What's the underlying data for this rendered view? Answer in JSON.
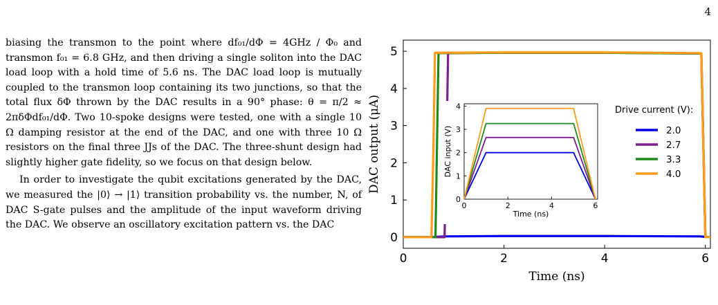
{
  "page": {
    "number": "4"
  },
  "paragraphs": [
    "biasing the transmon to the point where df₀₁/dΦ = 4GHz / Φ₀ and transmon f₀₁ = 6.8 GHz, and then driving a single soliton into the DAC load loop with a hold time of 5.6 ns. The DAC load loop is mutually coupled to the transmon loop containing its two junctions, so that the total flux δΦ thrown by the DAC results in a 90° phase: θ = π/2 ≈ 2πδΦdf₀₁/dΦ. Two 10-spoke designs were tested, one with a single 10 Ω damping resistor at the end of the DAC, and one with three 10 Ω resistors on the final three JJs of the DAC. The three-shunt design had slightly higher gate fidelity, so we focus on that design below.",
    "In order to investigate the qubit excitations generated by the DAC, we measured the |0⟩ → |1⟩ transition probability vs. the number, N, of DAC S-gate pulses and the amplitude of the input waveform driving the DAC. We observe an oscillatory excitation pattern vs. the DAC"
  ],
  "chart_data": [
    {
      "type": "line",
      "xlabel": "Time (ns)",
      "ylabel": "DAC output (μA)",
      "xlim": [
        0,
        6.1
      ],
      "ylim": [
        -0.3,
        5.3
      ],
      "xticks": [
        "0",
        "2",
        "4",
        "6"
      ],
      "yticks": [
        "0",
        "1",
        "2",
        "3",
        "4",
        "5"
      ],
      "grid": false,
      "legend": {
        "title": "Drive current (V):",
        "placement": "right"
      },
      "series": [
        {
          "name": "2.0",
          "color": "#0000ee",
          "points": [
            [
              0,
              0.0
            ],
            [
              0.58,
              0.0
            ],
            [
              0.8,
              0.02
            ],
            [
              2.0,
              0.03
            ],
            [
              4.0,
              0.03
            ],
            [
              5.9,
              0.02
            ],
            [
              6.05,
              0.0
            ],
            [
              6.1,
              0.0
            ]
          ]
        },
        {
          "name": "2.7",
          "color": "#7a1f8f",
          "points": [
            [
              0,
              0.0
            ],
            [
              0.82,
              0.0
            ],
            [
              0.86,
              2.5
            ],
            [
              0.89,
              4.95
            ],
            [
              2.0,
              4.96
            ],
            [
              4.0,
              4.96
            ],
            [
              5.92,
              4.94
            ],
            [
              5.96,
              2.5
            ],
            [
              6.0,
              0.0
            ],
            [
              6.1,
              0.0
            ]
          ]
        },
        {
          "name": "3.3",
          "color": "#1e8a1e",
          "points": [
            [
              0,
              0.0
            ],
            [
              0.64,
              0.0
            ],
            [
              0.67,
              2.5
            ],
            [
              0.7,
              4.95
            ],
            [
              2.0,
              4.96
            ],
            [
              4.0,
              4.96
            ],
            [
              5.92,
              4.94
            ],
            [
              5.96,
              2.5
            ],
            [
              6.0,
              0.0
            ],
            [
              6.1,
              0.0
            ]
          ]
        },
        {
          "name": "4.0",
          "color": "#ff9a1a",
          "points": [
            [
              0,
              0.0
            ],
            [
              0.56,
              0.0
            ],
            [
              0.6,
              2.5
            ],
            [
              0.63,
              4.96
            ],
            [
              2.0,
              4.97
            ],
            [
              4.0,
              4.97
            ],
            [
              5.92,
              4.95
            ],
            [
              5.96,
              2.5
            ],
            [
              6.0,
              0.0
            ],
            [
              6.1,
              0.0
            ]
          ]
        }
      ]
    },
    {
      "type": "line",
      "xlabel": "Time (ns)",
      "ylabel": "DAC input (V)",
      "xlim": [
        0,
        6.1
      ],
      "ylim": [
        0,
        4.1
      ],
      "xticks": [
        "0",
        "2",
        "4",
        "6"
      ],
      "yticks": [
        "0",
        "1",
        "2",
        "3",
        "4"
      ],
      "grid": false,
      "series": [
        {
          "color": "#0000ee",
          "points": [
            [
              0,
              0
            ],
            [
              1,
              2.0
            ],
            [
              5,
              2.0
            ],
            [
              6,
              0
            ]
          ]
        },
        {
          "color": "#7a1f8f",
          "points": [
            [
              0,
              0
            ],
            [
              1,
              2.65
            ],
            [
              5,
              2.65
            ],
            [
              6,
              0
            ]
          ]
        },
        {
          "color": "#1e8a1e",
          "points": [
            [
              0,
              0
            ],
            [
              1,
              3.25
            ],
            [
              5,
              3.25
            ],
            [
              6,
              0
            ]
          ]
        },
        {
          "color": "#ff9a1a",
          "points": [
            [
              0,
              0
            ],
            [
              1,
              3.9
            ],
            [
              5,
              3.9
            ],
            [
              6,
              0
            ]
          ]
        }
      ]
    }
  ]
}
